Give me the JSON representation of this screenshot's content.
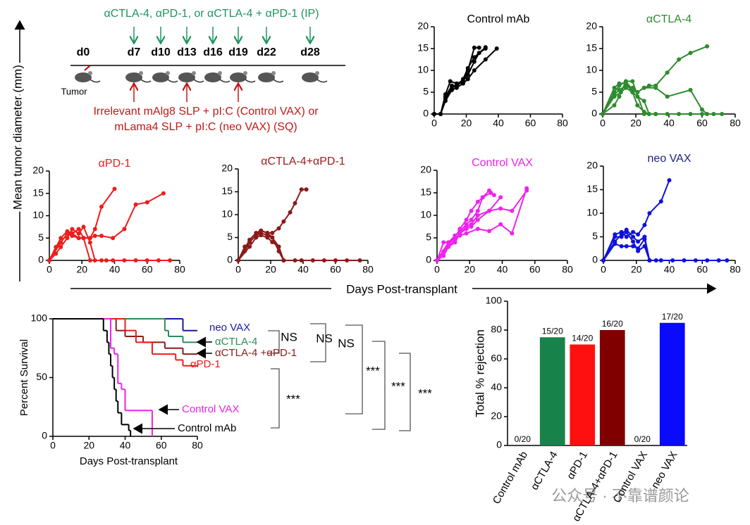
{
  "schematic": {
    "treatment": "αCTLA-4, αPD-1, or αCTLA-4 + αPD-1 (IP)",
    "days": [
      "d0",
      "d7",
      "d10",
      "d13",
      "d16",
      "d19",
      "d22",
      "d28"
    ],
    "tumor": "Tumor",
    "vaccine": [
      "Irrelevant mAlg8 SLP + pI:C (Control VAX) or",
      "mLama4 SLP + pI:C (neo VAX) (SQ)"
    ]
  },
  "shared_axes": {
    "y_label": "Mean tumor diameter (mm)",
    "x_label": "Days Post-transplant"
  },
  "annotations": [
    "NS",
    "NS",
    "NS",
    "***",
    "***",
    "***",
    "***"
  ],
  "watermark": "公众号 · 不靠谱颜论",
  "chart_data": [
    {
      "type": "line",
      "title": "Control mAb",
      "title_color": "#000000",
      "xlim": [
        0,
        80
      ],
      "ylim": [
        0,
        20
      ],
      "xticks": [
        0,
        20,
        40,
        60,
        80
      ],
      "yticks": [
        0,
        5,
        10,
        15,
        20
      ],
      "series": [
        {
          "color": "#000000",
          "x": [
            0,
            4,
            7,
            10,
            14,
            18,
            21,
            25,
            28
          ],
          "values": [
            0,
            0,
            4.5,
            7.5,
            7,
            7.5,
            10,
            15.2,
            15.2
          ]
        },
        {
          "color": "#000000",
          "x": [
            0,
            4,
            7,
            11,
            14,
            18,
            21,
            25,
            32
          ],
          "values": [
            0,
            0,
            4,
            6.5,
            6.5,
            8,
            10.5,
            13,
            15.3
          ]
        },
        {
          "color": "#000000",
          "x": [
            0,
            4,
            7,
            11,
            14,
            18,
            21,
            25,
            28,
            32
          ],
          "values": [
            0,
            0,
            3.5,
            6,
            6.5,
            7.5,
            9,
            12,
            14,
            15
          ]
        },
        {
          "color": "#000000",
          "x": [
            0,
            4,
            7,
            11,
            14,
            18,
            21,
            25,
            32,
            39
          ],
          "values": [
            0,
            0,
            3,
            5.5,
            6,
            7,
            8,
            10,
            12.5,
            15
          ]
        }
      ]
    },
    {
      "type": "line",
      "title": "αCTLA-4",
      "title_color": "#2e8b2e",
      "xlim": [
        0,
        80
      ],
      "ylim": [
        0,
        20
      ],
      "xticks": [
        0,
        20,
        40,
        60,
        80
      ],
      "yticks": [
        0,
        5,
        10,
        15,
        20
      ],
      "series": [
        {
          "color": "#2e8b2e",
          "x": [
            0,
            7,
            10,
            14,
            18,
            21,
            25,
            28,
            32,
            39,
            46,
            53,
            63
          ],
          "values": [
            0,
            4.5,
            5.5,
            6.5,
            6,
            5,
            6,
            6.5,
            6.5,
            9.5,
            12.5,
            14,
            15.5
          ]
        },
        {
          "color": "#2e8b2e",
          "x": [
            0,
            7,
            10,
            14,
            18,
            21,
            25,
            32,
            39,
            53,
            60,
            63
          ],
          "values": [
            0,
            5,
            6.5,
            7.5,
            5.5,
            5,
            6,
            6,
            4,
            5.5,
            1,
            0
          ]
        },
        {
          "color": "#2e8b2e",
          "x": [
            0,
            7,
            10,
            14,
            18,
            21,
            25,
            28
          ],
          "values": [
            0,
            6,
            7,
            7,
            5,
            4,
            3,
            0
          ]
        },
        {
          "color": "#2e8b2e",
          "x": [
            0,
            7,
            10,
            14,
            18,
            25,
            32,
            39,
            46,
            53,
            60,
            67,
            72
          ],
          "values": [
            0,
            2,
            4,
            7.5,
            7.5,
            0,
            0,
            0,
            0,
            0,
            0,
            0,
            0
          ]
        },
        {
          "color": "#2e8b2e",
          "x": [
            0,
            7,
            11,
            14,
            18,
            21,
            25,
            28,
            32
          ],
          "values": [
            0,
            4,
            5,
            6,
            5,
            2,
            0.5,
            0,
            0
          ]
        }
      ]
    },
    {
      "type": "line",
      "title": "αPD-1",
      "title_color": "#ee1c1c",
      "xlim": [
        0,
        80
      ],
      "ylim": [
        0,
        20
      ],
      "xticks": [
        0,
        20,
        40,
        60,
        80
      ],
      "yticks": [
        0,
        5,
        10,
        15,
        20
      ],
      "series": [
        {
          "color": "#ee1c1c",
          "x": [
            0,
            4,
            7,
            11,
            14,
            18,
            21,
            25,
            28,
            32,
            40
          ],
          "values": [
            0,
            3,
            4,
            6,
            6,
            5,
            5,
            5,
            7,
            12,
            16
          ]
        },
        {
          "color": "#ee1c1c",
          "x": [
            0,
            7,
            11,
            14,
            18,
            21,
            25,
            28,
            32,
            39,
            46,
            53,
            60,
            70
          ],
          "values": [
            0,
            4,
            6,
            5.5,
            5,
            5,
            5,
            5.5,
            5.5,
            5,
            7,
            12.5,
            13,
            15
          ]
        },
        {
          "color": "#ee1c1c",
          "x": [
            0,
            4,
            7,
            11,
            14,
            18,
            21,
            25,
            28,
            35
          ],
          "values": [
            0,
            1.5,
            3,
            5,
            7,
            6,
            7.5,
            4,
            0,
            0
          ]
        },
        {
          "color": "#ee1c1c",
          "x": [
            0,
            7,
            11,
            14,
            18,
            21,
            25,
            32,
            39,
            46,
            53,
            60,
            67,
            74
          ],
          "values": [
            0,
            5,
            6.5,
            6,
            7,
            5,
            0,
            0,
            0,
            0,
            0,
            0,
            0,
            0
          ]
        }
      ]
    },
    {
      "type": "line",
      "title": "αCTLA-4+αPD-1",
      "title_color": "#a01c1c",
      "xlim": [
        0,
        80
      ],
      "ylim": [
        0,
        20
      ],
      "xticks": [
        0,
        20,
        40,
        60,
        80
      ],
      "yticks": [
        0,
        5,
        10,
        15,
        20
      ],
      "series": [
        {
          "color": "#8b1a1a",
          "x": [
            0,
            4,
            7,
            11,
            14,
            18,
            21,
            25,
            28,
            32,
            35,
            39,
            42
          ],
          "values": [
            0,
            3,
            4,
            5.5,
            6.5,
            6,
            6,
            7,
            8.5,
            10.5,
            12.5,
            15.5,
            15.5
          ]
        },
        {
          "color": "#8b1a1a",
          "x": [
            0,
            4,
            7,
            11,
            14,
            18,
            21,
            25,
            28,
            35
          ],
          "values": [
            0,
            2,
            4,
            5.5,
            6,
            5.5,
            5,
            3,
            0,
            0
          ]
        },
        {
          "color": "#8b1a1a",
          "x": [
            0,
            7,
            11,
            14,
            18,
            21,
            25,
            28,
            39,
            46,
            53,
            60,
            67,
            75
          ],
          "values": [
            0,
            4.5,
            6,
            6.5,
            6,
            5,
            2,
            0,
            0,
            0,
            0,
            0,
            0,
            0
          ]
        },
        {
          "color": "#8b1a1a",
          "x": [
            0,
            7,
            11,
            14,
            18,
            21,
            25,
            28
          ],
          "values": [
            0,
            3,
            5,
            5.5,
            5,
            4,
            3,
            0
          ]
        }
      ]
    },
    {
      "type": "line",
      "title": "Control VAX",
      "title_color": "#ee22ee",
      "xlim": [
        0,
        80
      ],
      "ylim": [
        0,
        20
      ],
      "xticks": [
        0,
        20,
        40,
        60,
        80
      ],
      "yticks": [
        0,
        5,
        10,
        15,
        20
      ],
      "series": [
        {
          "color": "#ee22ee",
          "x": [
            0,
            4,
            7,
            11,
            14,
            18,
            21,
            25,
            28,
            32,
            35
          ],
          "values": [
            0,
            4,
            4,
            5.5,
            6.5,
            8,
            9,
            11,
            14,
            15.5,
            14.5
          ]
        },
        {
          "color": "#ee22ee",
          "x": [
            0,
            4,
            7,
            11,
            14,
            18,
            21,
            25,
            28,
            33
          ],
          "values": [
            0,
            2,
            3.5,
            5,
            7,
            9,
            11,
            13,
            14,
            15
          ]
        },
        {
          "color": "#ee22ee",
          "x": [
            0,
            4,
            7,
            11,
            14,
            18,
            21,
            25,
            32,
            39,
            46,
            55
          ],
          "values": [
            0,
            1,
            3,
            4.5,
            6,
            7.5,
            8,
            10,
            11,
            11.5,
            11,
            15.5
          ]
        },
        {
          "color": "#ee22ee",
          "x": [
            0,
            7,
            11,
            14,
            18,
            25,
            32,
            39,
            46,
            55
          ],
          "values": [
            0,
            4,
            5,
            5.5,
            6,
            7,
            6.5,
            8,
            6,
            16
          ]
        },
        {
          "color": "#ee22ee",
          "x": [
            0,
            7,
            11,
            14,
            18,
            21,
            25,
            32,
            39
          ],
          "values": [
            0,
            3,
            4,
            6,
            7,
            7.5,
            9,
            11,
            14
          ]
        }
      ]
    },
    {
      "type": "line",
      "title": "neo VAX",
      "title_color": "#1a237e",
      "xlim": [
        0,
        80
      ],
      "ylim": [
        0,
        20
      ],
      "xticks": [
        0,
        20,
        40,
        60,
        80
      ],
      "yticks": [
        0,
        5,
        10,
        15,
        20
      ],
      "series": [
        {
          "color": "#1010dd",
          "x": [
            0,
            7,
            11,
            14,
            18,
            21,
            25,
            28,
            35,
            40
          ],
          "values": [
            0,
            5.5,
            6,
            5,
            6,
            5.5,
            7.5,
            10,
            12.5,
            17
          ]
        },
        {
          "color": "#1010dd",
          "x": [
            0,
            7,
            11,
            14,
            18,
            21,
            25,
            28,
            32
          ],
          "values": [
            0,
            4,
            5.5,
            6.5,
            5,
            4,
            5,
            0,
            0
          ]
        },
        {
          "color": "#1010dd",
          "x": [
            0,
            7,
            11,
            14,
            18,
            21,
            25,
            28,
            35,
            42,
            49,
            56,
            63,
            70,
            75
          ],
          "values": [
            0,
            3.5,
            3,
            3,
            3,
            2.5,
            4.5,
            0,
            0,
            0,
            0,
            0,
            0,
            0,
            0
          ]
        },
        {
          "color": "#1010dd",
          "x": [
            0,
            7,
            11,
            14,
            18,
            21,
            25,
            28
          ],
          "values": [
            0,
            5,
            5,
            6,
            4,
            2,
            3,
            0
          ]
        }
      ]
    },
    {
      "type": "step",
      "x_label": "Days Post-transplant",
      "y_label": "Percent Survival",
      "xlim": [
        0,
        80
      ],
      "ylim": [
        0,
        100
      ],
      "xticks": [
        0,
        20,
        40,
        60,
        80
      ],
      "yticks": [
        0,
        50,
        100
      ],
      "series": [
        {
          "name": "neo VAX",
          "color": "#1a1aa0",
          "x": [
            0,
            72,
            80
          ],
          "values": [
            100,
            90,
            90
          ]
        },
        {
          "name": "αCTLA-4",
          "color": "#2e8b57",
          "x": [
            0,
            62,
            64,
            72,
            80
          ],
          "values": [
            100,
            90,
            85,
            80,
            80
          ]
        },
        {
          "name": "αCTLA-4 +αPD-1",
          "color": "#8b1a1a",
          "x": [
            0,
            35,
            40,
            50,
            62,
            72,
            80
          ],
          "values": [
            100,
            90,
            85,
            80,
            75,
            70,
            70
          ]
        },
        {
          "name": "αPD-1",
          "color": "#ee1c1c",
          "x": [
            0,
            40,
            46,
            55,
            68,
            72,
            80
          ],
          "values": [
            100,
            90,
            80,
            70,
            65,
            60,
            60
          ]
        },
        {
          "name": "Control VAX",
          "color": "#ee22ee",
          "x": [
            0,
            32,
            34,
            36,
            38,
            40,
            55
          ],
          "values": [
            100,
            75,
            70,
            45,
            40,
            22,
            0
          ]
        },
        {
          "name": "Control mAb",
          "color": "#000000",
          "x": [
            0,
            28,
            30,
            31,
            32,
            33,
            34,
            35,
            36,
            38,
            42,
            43
          ],
          "values": [
            100,
            90,
            80,
            70,
            60,
            50,
            40,
            30,
            20,
            10,
            5,
            0
          ]
        }
      ]
    },
    {
      "type": "bar",
      "y_label": "Total % rejection",
      "ylim": [
        0,
        100
      ],
      "yticks": [
        0,
        20,
        40,
        60,
        80,
        100
      ],
      "categories": [
        "Control mAb",
        "αCTLA-4",
        "αPD-1",
        "αCTLA-4+αPD-1",
        "Control VAX",
        "neo VAX"
      ],
      "values": [
        0,
        75,
        70,
        80,
        0,
        85
      ],
      "value_labels": [
        "0/20",
        "15/20",
        "14/20",
        "16/20",
        "0/20",
        "17/20"
      ],
      "colors": [
        "#000000",
        "#17834a",
        "#ff1010",
        "#800000",
        "#ff00ff",
        "#0a0aff"
      ]
    }
  ]
}
